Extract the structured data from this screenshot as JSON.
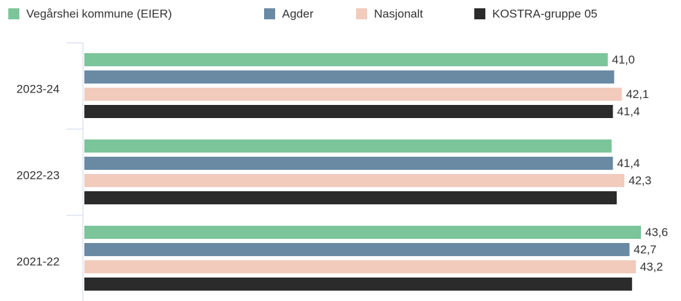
{
  "chart_data": {
    "type": "hbar",
    "categories": [
      "2023-24",
      "2022-23",
      "2021-22"
    ],
    "series": [
      {
        "name": "Vegårshei kommune (EIER)",
        "color": "#7cc49a",
        "values": [
          41.0,
          41.3,
          43.6
        ],
        "value_labels": [
          "41,0",
          null,
          "43,6"
        ]
      },
      {
        "name": "Agder",
        "color": "#6a8aa4",
        "values": [
          41.5,
          41.4,
          42.7
        ],
        "value_labels": [
          null,
          "41,4",
          "42,7"
        ]
      },
      {
        "name": "Nasjonalt",
        "color": "#f2cbbd",
        "values": [
          42.1,
          42.3,
          43.2
        ],
        "value_labels": [
          "42,1",
          "42,3",
          "43,2"
        ]
      },
      {
        "name": "KOSTRA-gruppe 05",
        "color": "#2b2b2b",
        "values": [
          41.4,
          41.7,
          42.9
        ],
        "value_labels": [
          "41,4",
          null,
          null
        ]
      }
    ],
    "xlim": [
      0,
      45
    ],
    "legend": "top"
  }
}
